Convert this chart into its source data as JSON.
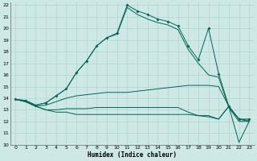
{
  "xlabel": "Humidex (Indice chaleur)",
  "x": [
    0,
    1,
    2,
    3,
    4,
    5,
    6,
    7,
    8,
    9,
    10,
    11,
    12,
    13,
    14,
    15,
    16,
    17,
    18,
    19,
    20,
    21,
    22,
    23
  ],
  "line_main": [
    13.9,
    13.8,
    13.4,
    13.6,
    14.2,
    14.8,
    16.2,
    17.2,
    18.5,
    19.2,
    19.6,
    22.0,
    21.5,
    21.2,
    20.8,
    20.6,
    20.2,
    18.5,
    17.3,
    20.0,
    16.1,
    13.3,
    12.2,
    12.2
  ],
  "line_upper": [
    13.9,
    13.8,
    13.4,
    13.6,
    14.2,
    14.8,
    16.2,
    17.2,
    18.5,
    19.2,
    19.5,
    21.8,
    21.2,
    20.8,
    20.5,
    20.3,
    19.9,
    18.2,
    17.0,
    16.0,
    15.8,
    13.2,
    12.0,
    12.0
  ],
  "line_mid_upper": [
    13.9,
    13.7,
    13.3,
    13.4,
    13.7,
    14.0,
    14.2,
    14.3,
    14.4,
    14.5,
    14.5,
    14.5,
    14.6,
    14.7,
    14.8,
    14.9,
    15.0,
    15.1,
    15.1,
    15.1,
    15.0,
    13.3,
    12.2,
    12.1
  ],
  "line_mid_lower": [
    13.9,
    13.7,
    13.3,
    13.0,
    13.0,
    13.1,
    13.1,
    13.1,
    13.2,
    13.2,
    13.2,
    13.2,
    13.2,
    13.2,
    13.2,
    13.2,
    13.2,
    12.8,
    12.5,
    12.5,
    12.2,
    13.3,
    12.2,
    12.0
  ],
  "line_min": [
    13.9,
    13.7,
    13.3,
    13.0,
    12.8,
    12.8,
    12.6,
    12.6,
    12.6,
    12.6,
    12.6,
    12.6,
    12.6,
    12.6,
    12.6,
    12.6,
    12.6,
    12.6,
    12.5,
    12.4,
    12.2,
    13.3,
    10.2,
    12.0
  ],
  "bg_color": "#cde8e5",
  "grid_color": "#aad0cc",
  "line_color": "#006655",
  "ylim": [
    10,
    22
  ],
  "xlim": [
    -0.5,
    23.5
  ],
  "yticks": [
    10,
    11,
    12,
    13,
    14,
    15,
    16,
    17,
    18,
    19,
    20,
    21,
    22
  ],
  "xticks": [
    0,
    1,
    2,
    3,
    4,
    5,
    6,
    7,
    8,
    9,
    10,
    11,
    12,
    13,
    14,
    15,
    16,
    17,
    18,
    19,
    20,
    21,
    22,
    23
  ]
}
